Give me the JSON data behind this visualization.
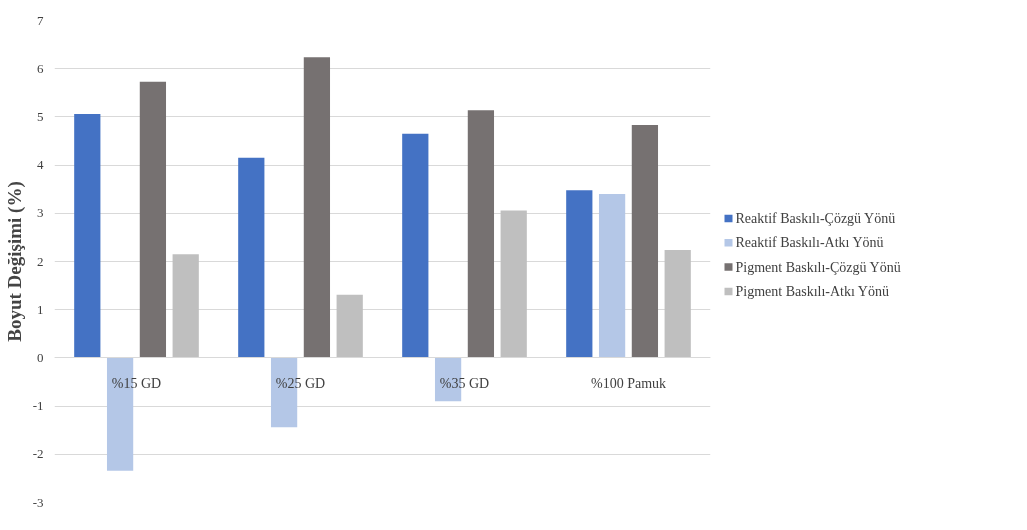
{
  "chart_data": {
    "type": "bar",
    "ylabel": "Boyut Değişimi (%)",
    "categories": [
      "%15 GD",
      "%25 GD",
      "%35 GD",
      "%100 Pamuk"
    ],
    "series": [
      {
        "name": "Reaktif Baskılı-Çözgü Yönü",
        "color": "#4472c4",
        "values": [
          5.06,
          4.15,
          4.65,
          3.48
        ]
      },
      {
        "name": "Reaktif Baskılı-Atkı Yönü",
        "color": "#b4c7e7",
        "values": [
          -2.34,
          -1.44,
          -0.9,
          3.4
        ]
      },
      {
        "name": "Pigment Baskılı-Çözgü Yönü",
        "color": "#767171",
        "values": [
          5.73,
          6.24,
          5.14,
          4.83
        ]
      },
      {
        "name": "Pigment Baskılı-Atkı Yönü",
        "color": "#bfbfbf",
        "values": [
          2.15,
          1.31,
          3.06,
          2.24
        ]
      }
    ],
    "ylim": [
      -3,
      7
    ],
    "yticks": [
      -3,
      -2,
      -1,
      0,
      1,
      2,
      3,
      4,
      5,
      6,
      7
    ],
    "grid": "y",
    "legend": "right"
  }
}
